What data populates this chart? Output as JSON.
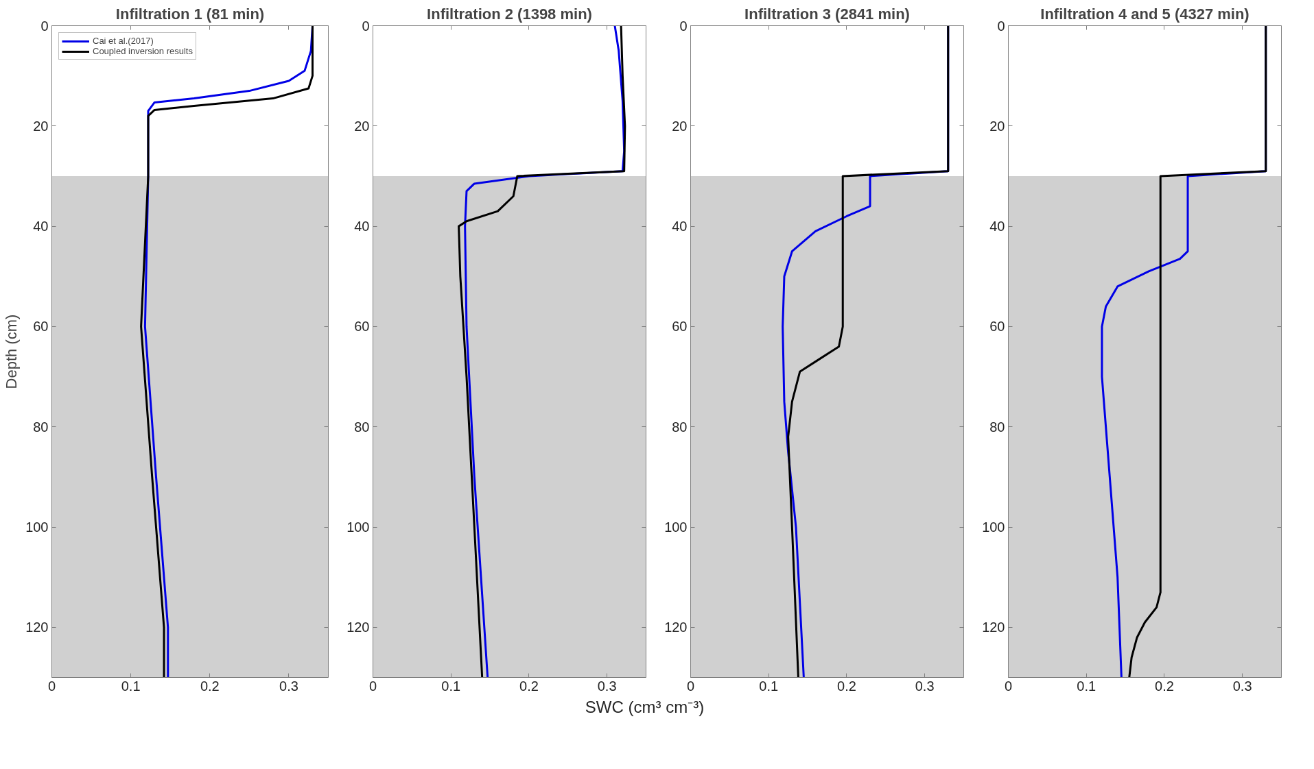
{
  "chart_data": [
    {
      "type": "line",
      "title": "Infiltration 1 (81 min)",
      "ylabel": "Depth (cm)",
      "xlim": [
        0,
        0.35
      ],
      "xticks": [
        0,
        0.1,
        0.2,
        0.3
      ],
      "ylim": [
        130,
        0
      ],
      "yticks": [
        0,
        20,
        40,
        60,
        80,
        100,
        120
      ],
      "grid": false,
      "legend": "top left",
      "line_style": "solid",
      "marker": "none",
      "bands": [
        {
          "axis": "y",
          "from": 30,
          "to": 130,
          "color": "#d0d0d0"
        }
      ],
      "series": [
        {
          "name": "Cai et al.(2017)",
          "color": "#0000e6",
          "x": [
            0.33,
            0.328,
            0.32,
            0.3,
            0.25,
            0.18,
            0.13,
            0.122,
            0.122,
            0.118,
            0.132,
            0.147,
            0.147
          ],
          "values": [
            0,
            5,
            9,
            11,
            13,
            14.5,
            15.3,
            17,
            30,
            60,
            90,
            120,
            130
          ]
        },
        {
          "name": "Coupled inversion results",
          "color": "#000000",
          "x": [
            0.33,
            0.33,
            0.325,
            0.28,
            0.18,
            0.13,
            0.122,
            0.122,
            0.113,
            0.127,
            0.142,
            0.142
          ],
          "values": [
            0,
            10,
            12.5,
            14.5,
            16,
            16.8,
            18,
            30,
            60,
            90,
            120,
            130
          ]
        }
      ]
    },
    {
      "type": "line",
      "title": "Infiltration 2 (1398 min)",
      "xlabel": "SWC (cm³ cm⁻³)",
      "xlim": [
        0,
        0.35
      ],
      "xticks": [
        0,
        0.1,
        0.2,
        0.3
      ],
      "ylim": [
        130,
        0
      ],
      "yticks": [
        0,
        20,
        40,
        60,
        80,
        100,
        120
      ],
      "grid": false,
      "line_style": "solid",
      "marker": "none",
      "bands": [
        {
          "axis": "y",
          "from": 30,
          "to": 130,
          "color": "#d0d0d0"
        }
      ],
      "series": [
        {
          "color": "#0000e6",
          "x": [
            0.31,
            0.315,
            0.32,
            0.322,
            0.32,
            0.2,
            0.13,
            0.12,
            0.118,
            0.12,
            0.13,
            0.147
          ],
          "values": [
            0,
            5,
            15,
            25,
            29,
            30,
            31.5,
            33,
            40,
            60,
            90,
            130
          ]
        },
        {
          "color": "#000000",
          "x": [
            0.318,
            0.32,
            0.323,
            0.322,
            0.185,
            0.18,
            0.16,
            0.12,
            0.11,
            0.112,
            0.12,
            0.13,
            0.14
          ],
          "values": [
            0,
            10,
            20,
            29,
            30,
            34,
            37,
            39,
            40,
            50,
            70,
            100,
            130
          ]
        }
      ]
    },
    {
      "type": "line",
      "title": "Infiltration 3 (2841 min)",
      "xlim": [
        0,
        0.35
      ],
      "xticks": [
        0,
        0.1,
        0.2,
        0.3
      ],
      "ylim": [
        130,
        0
      ],
      "yticks": [
        0,
        20,
        40,
        60,
        80,
        100,
        120
      ],
      "grid": false,
      "line_style": "solid",
      "marker": "none",
      "bands": [
        {
          "axis": "y",
          "from": 30,
          "to": 130,
          "color": "#d0d0d0"
        }
      ],
      "series": [
        {
          "color": "#0000e6",
          "x": [
            0.33,
            0.33,
            0.23,
            0.23,
            0.2,
            0.16,
            0.13,
            0.12,
            0.118,
            0.12,
            0.125,
            0.135,
            0.145
          ],
          "values": [
            0,
            29,
            30,
            36,
            38,
            41,
            45,
            50,
            60,
            75,
            85,
            100,
            130
          ]
        },
        {
          "color": "#000000",
          "x": [
            0.33,
            0.33,
            0.195,
            0.195,
            0.19,
            0.16,
            0.14,
            0.13,
            0.125,
            0.13,
            0.138
          ],
          "values": [
            0,
            29,
            30,
            60,
            64,
            67,
            69,
            75,
            82,
            100,
            130
          ]
        }
      ]
    },
    {
      "type": "line",
      "title": "Infiltration 4 and 5 (4327 min)",
      "xlim": [
        0,
        0.35
      ],
      "xticks": [
        0,
        0.1,
        0.2,
        0.3
      ],
      "ylim": [
        130,
        0
      ],
      "yticks": [
        0,
        20,
        40,
        60,
        80,
        100,
        120
      ],
      "grid": false,
      "line_style": "solid",
      "marker": "none",
      "bands": [
        {
          "axis": "y",
          "from": 30,
          "to": 130,
          "color": "#d0d0d0"
        }
      ],
      "series": [
        {
          "color": "#0000e6",
          "x": [
            0.33,
            0.33,
            0.23,
            0.23,
            0.22,
            0.18,
            0.14,
            0.125,
            0.12,
            0.12,
            0.13,
            0.14,
            0.145
          ],
          "values": [
            0,
            29,
            30,
            45,
            46.5,
            49,
            52,
            56,
            60,
            70,
            90,
            110,
            130
          ]
        },
        {
          "color": "#000000",
          "x": [
            0.33,
            0.33,
            0.195,
            0.195,
            0.19,
            0.175,
            0.165,
            0.158,
            0.155
          ],
          "values": [
            0,
            29,
            30,
            113,
            116,
            119,
            122,
            126,
            130
          ]
        }
      ]
    }
  ]
}
